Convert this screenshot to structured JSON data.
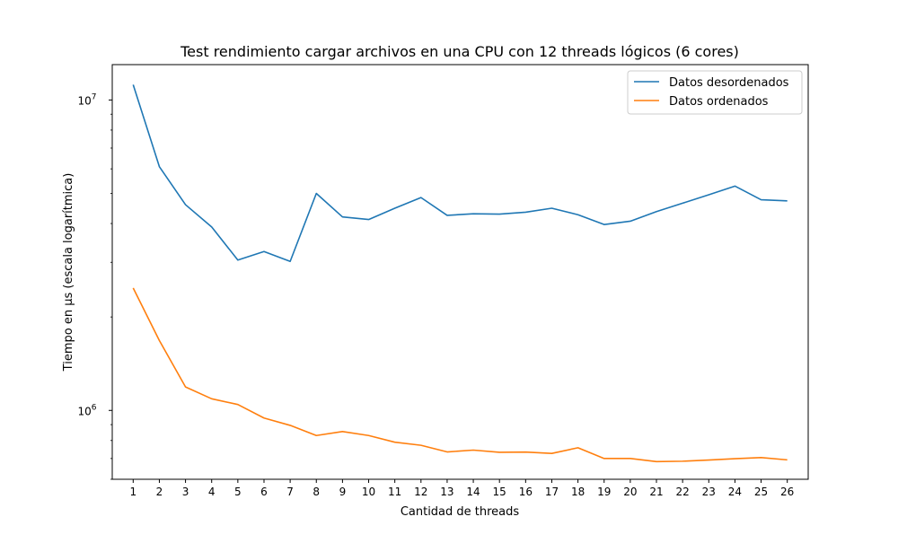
{
  "chart_data": {
    "type": "line",
    "title": "Test rendimiento cargar archivos en una CPU con 12 threads lógicos (6 cores)",
    "xlabel": "Cantidad de threads",
    "ylabel": "Tiempo en µs (escala logarítmica)",
    "yscale": "log",
    "ylim": [
      600000,
      13000000
    ],
    "xlim": [
      0.2,
      26.8
    ],
    "x": [
      1,
      2,
      3,
      4,
      5,
      6,
      7,
      8,
      9,
      10,
      11,
      12,
      13,
      14,
      15,
      16,
      17,
      18,
      19,
      20,
      21,
      22,
      23,
      24,
      25,
      26
    ],
    "xticks": [
      "1",
      "2",
      "3",
      "4",
      "5",
      "6",
      "7",
      "8",
      "9",
      "10",
      "11",
      "12",
      "13",
      "14",
      "15",
      "16",
      "17",
      "18",
      "19",
      "20",
      "21",
      "22",
      "23",
      "24",
      "25",
      "26"
    ],
    "yticks": [
      {
        "base": "10",
        "exp": "6",
        "value": 1000000
      },
      {
        "base": "10",
        "exp": "7",
        "value": 10000000
      }
    ],
    "grid": false,
    "legend_position": "top-right",
    "series": [
      {
        "name": "Datos desordenados",
        "color": "#1f77b4",
        "values": [
          11200000,
          6100000,
          4600000,
          3900000,
          3050000,
          3250000,
          3020000,
          5000000,
          4200000,
          4120000,
          4480000,
          4850000,
          4250000,
          4300000,
          4290000,
          4350000,
          4480000,
          4270000,
          3970000,
          4070000,
          4370000,
          4650000,
          4950000,
          5280000,
          4770000,
          4730000
        ]
      },
      {
        "name": "Datos ordenados",
        "color": "#ff7f0e",
        "values": [
          2480000,
          1680000,
          1190000,
          1090000,
          1045000,
          945000,
          895000,
          830000,
          855000,
          830000,
          790000,
          772000,
          735000,
          745000,
          733000,
          734000,
          727000,
          758000,
          700000,
          700000,
          684000,
          686000,
          692000,
          699000,
          705000,
          693000
        ]
      }
    ]
  }
}
